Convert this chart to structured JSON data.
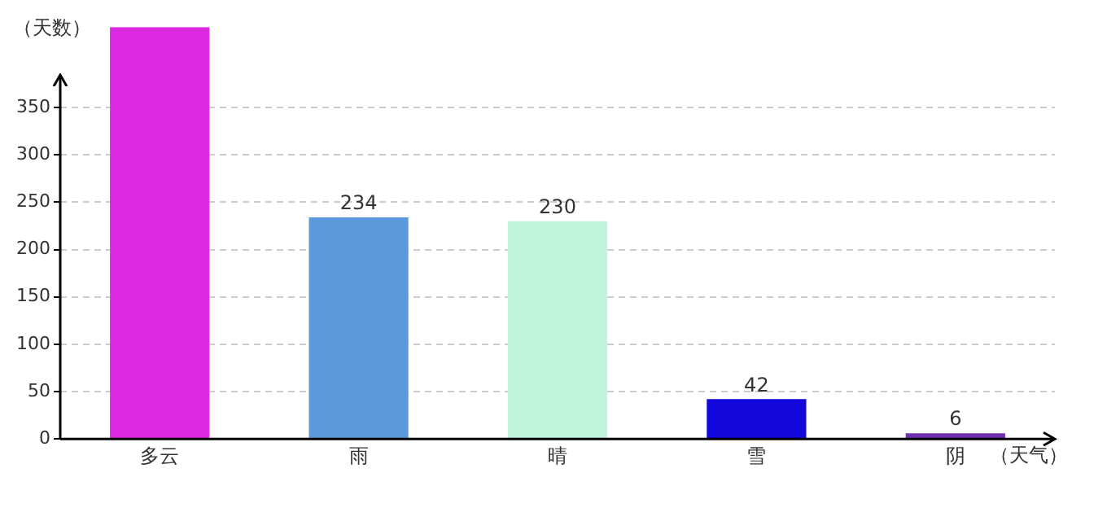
{
  "chart_data": {
    "type": "bar",
    "xlabel": "（天气）",
    "ylabel": "（天数）",
    "categories": [
      "多云",
      "雨",
      "晴",
      "雪",
      "阴"
    ],
    "values": [
      435,
      234,
      230,
      42,
      6
    ],
    "colors": [
      "#dc28e0",
      "#5b99dc",
      "#c0f4dc",
      "#1208dc",
      "#7030b0"
    ],
    "value_labels": [
      null,
      "234",
      "230",
      "42",
      "6"
    ],
    "ylim": [
      0,
      435
    ],
    "yticks": [
      0,
      50,
      100,
      150,
      200,
      250,
      300,
      350
    ],
    "grid": "y",
    "legend": false
  }
}
